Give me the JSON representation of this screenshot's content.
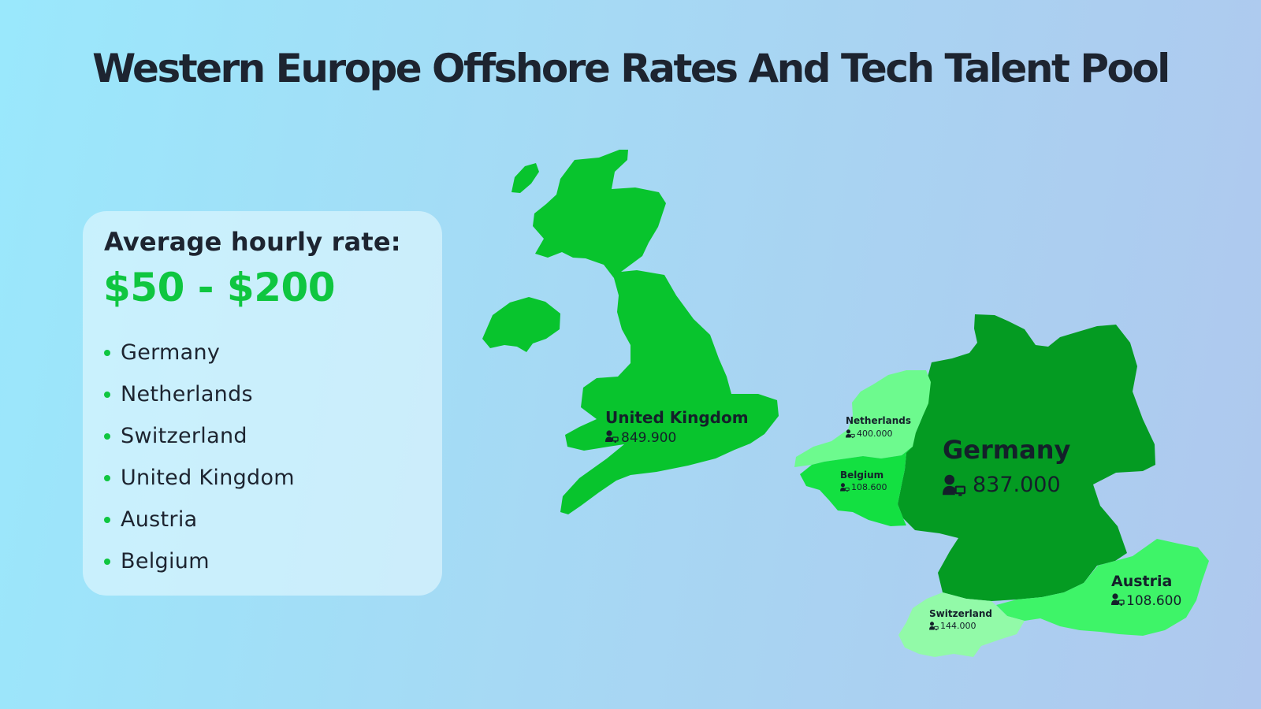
{
  "title": "Western Europe Offshore Rates And Tech Talent Pool",
  "rate_card": {
    "heading": "Average hourly rate:",
    "rate": "$50 - $200",
    "countries": [
      "Germany",
      "Netherlands",
      "Switzerland",
      "United Kingdom",
      "Austria",
      "Belgium"
    ]
  },
  "regions": [
    {
      "name": "United Kingdom",
      "talent_pool": "849.900",
      "color": "#08c42d",
      "icon": "developer-icon"
    },
    {
      "name": "Germany",
      "talent_pool": "837.000",
      "color": "#049b22",
      "icon": "developer-icon"
    },
    {
      "name": "Netherlands",
      "talent_pool": "400.000",
      "color": "#6dfa8e",
      "icon": "developer-icon"
    },
    {
      "name": "Belgium",
      "talent_pool": "108.600",
      "color": "#13e041",
      "icon": "developer-icon"
    },
    {
      "name": "Austria",
      "talent_pool": "108.600",
      "color": "#3ef468",
      "icon": "developer-icon"
    },
    {
      "name": "Switzerland",
      "talent_pool": "144.000",
      "color": "#92faa8",
      "icon": "developer-icon"
    }
  ],
  "colors": {
    "accent": "#0fc640",
    "background_start": "#9ae8fc",
    "background_end": "#afc8ee",
    "text": "#1d2430"
  }
}
